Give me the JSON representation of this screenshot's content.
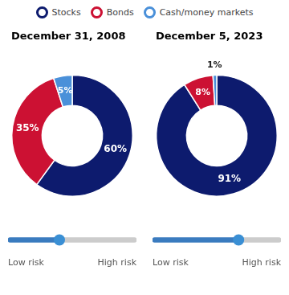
{
  "chart_data": [
    {
      "type": "doughnut",
      "title": "December 31, 2008",
      "categories": [
        "Stocks",
        "Bonds",
        "Cash/money markets"
      ],
      "values": [
        60,
        35,
        5
      ],
      "value_labels": [
        "60%",
        "35%",
        "5%"
      ],
      "colors": [
        "#0d1b6e",
        "#cc1133",
        "#4a90d9"
      ],
      "data_labels": true,
      "legend": "top"
    },
    {
      "type": "slider",
      "values": [
        0.4
      ],
      "xlim": [
        0,
        1
      ],
      "xticks": [
        {
          "value": 0,
          "label": "Low risk"
        },
        {
          "value": 1,
          "label": "High risk"
        }
      ],
      "colors": [
        "#3a7bbf",
        "#cccccc",
        "#3a8fd4"
      ]
    },
    {
      "type": "doughnut",
      "title": "December 5, 2023",
      "categories": [
        "Stocks",
        "Bonds",
        "Cash/money markets"
      ],
      "values": [
        91,
        8,
        1
      ],
      "value_labels": [
        "91%",
        "8%",
        "1%"
      ],
      "colors": [
        "#0d1b6e",
        "#cc1133",
        "#4a90d9"
      ],
      "data_labels": true
    },
    {
      "type": "slider",
      "values": [
        0.67
      ],
      "xlim": [
        0,
        1
      ],
      "xticks": [
        {
          "value": 0,
          "label": "Low risk"
        },
        {
          "value": 1,
          "label": "High risk"
        }
      ],
      "colors": [
        "#3a7bbf",
        "#cccccc",
        "#3a8fd4"
      ]
    }
  ]
}
